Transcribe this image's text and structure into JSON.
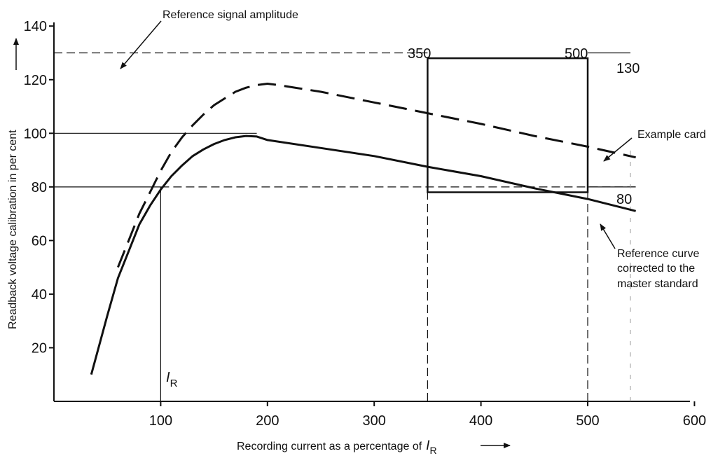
{
  "chart_data": {
    "type": "line",
    "title": "",
    "xlabel": "Recording current as a percentage of",
    "xlabel_symbol": "I",
    "xlabel_symbol_sub": "R",
    "ylabel": "Readback voltage calibration in per cent",
    "xlim": [
      0,
      600
    ],
    "ylim": [
      0,
      145
    ],
    "x_ticks": [
      100,
      200,
      300,
      400,
      500,
      600
    ],
    "y_ticks": [
      20,
      40,
      60,
      80,
      100,
      120,
      140
    ],
    "grid": false,
    "series": [
      {
        "name": "Reference curve corrected to the master standard",
        "style": "solid",
        "x": [
          35,
          50,
          60,
          70,
          80,
          90,
          100,
          110,
          120,
          130,
          140,
          150,
          160,
          170,
          180,
          190,
          200,
          250,
          300,
          350,
          400,
          450,
          500,
          545
        ],
        "y": [
          10,
          32,
          46,
          56,
          66,
          73,
          79,
          84,
          88,
          91.5,
          94,
          96,
          97.5,
          98.5,
          99,
          98.8,
          97.5,
          94.5,
          91.5,
          87.5,
          84,
          79.5,
          75.5,
          71
        ]
      },
      {
        "name": "Example card",
        "style": "dashed",
        "x": [
          60,
          70,
          80,
          90,
          100,
          110,
          120,
          130,
          140,
          150,
          160,
          170,
          180,
          190,
          200,
          210,
          250,
          300,
          350,
          400,
          450,
          500,
          545
        ],
        "y": [
          50,
          60,
          70,
          78,
          86,
          93,
          98.5,
          103,
          107,
          110.5,
          113,
          115.5,
          117,
          118,
          118.5,
          118,
          115.5,
          111.5,
          107.5,
          103.5,
          99,
          95,
          91
        ]
      }
    ],
    "reference_lines": [
      {
        "y": 100,
        "x_to": 190,
        "style": "solid"
      },
      {
        "y": 80,
        "x_to": 100,
        "style": "solid"
      },
      {
        "x": 100,
        "y_from": 0,
        "y_to": 80,
        "style": "solid"
      },
      {
        "y": 80,
        "x_from": 100,
        "x_to": 545,
        "style": "dashed"
      },
      {
        "y": 130,
        "x_from": 0,
        "x_to": 350,
        "style": "dashed"
      },
      {
        "y": 130,
        "x_from": 500,
        "x_to": 540,
        "style": "solid"
      },
      {
        "y": 80,
        "x_from": 500,
        "x_to": 545,
        "style": "solid"
      },
      {
        "x": 350,
        "y_from": 0,
        "y_to": 78,
        "style": "dashed"
      },
      {
        "x": 500,
        "y_from": 0,
        "y_to": 78,
        "style": "dashed"
      },
      {
        "x": 540,
        "y_from": 0,
        "y_to": 95,
        "style": "dashed-faint"
      }
    ],
    "tolerance_box": {
      "x_min": 350,
      "x_max": 500,
      "y_min": 78,
      "y_max": 128
    },
    "annotations": [
      {
        "id": "ref-signal",
        "text": "Reference signal amplitude",
        "points_to": [
          130,
          100
        ]
      },
      {
        "id": "example-card",
        "text": "Example card",
        "points_to": [
          525,
          93
        ]
      },
      {
        "id": "reference-curve",
        "lines": [
          "Reference curve",
          "corrected to the",
          "master standard"
        ],
        "points_to": [
          520,
          72
        ]
      },
      {
        "id": "label-350",
        "text": "350"
      },
      {
        "id": "label-500",
        "text": "500"
      },
      {
        "id": "label-130",
        "text": "130"
      },
      {
        "id": "label-80",
        "text": "80"
      },
      {
        "id": "label-ir",
        "text": "I",
        "sub": "R"
      }
    ]
  }
}
